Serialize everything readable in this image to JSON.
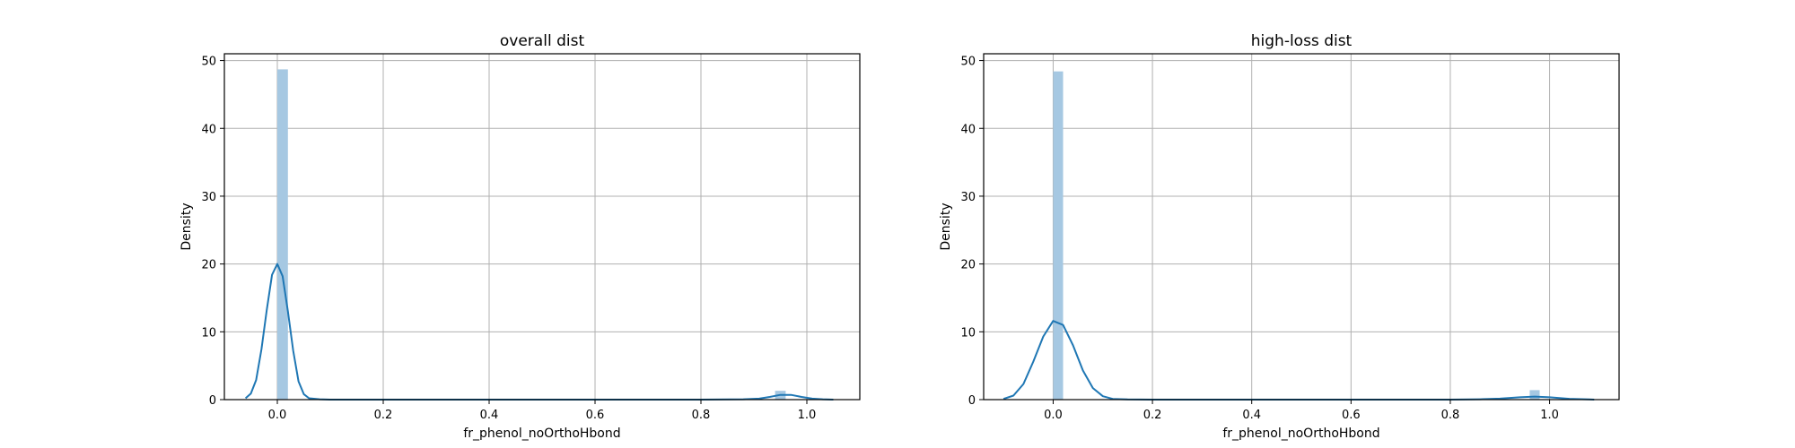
{
  "chart_data": [
    {
      "type": "histogram+kde",
      "title": "overall dist",
      "xlabel": "fr_phenol_noOrthoHbond",
      "ylabel": "Density",
      "xlim": [
        -0.1,
        1.1
      ],
      "ylim": [
        0,
        51
      ],
      "xticks": [
        0.0,
        0.2,
        0.4,
        0.6,
        0.8,
        1.0
      ],
      "xtick_labels": [
        "0.0",
        "0.2",
        "0.4",
        "0.6",
        "0.8",
        "1.0"
      ],
      "yticks": [
        0,
        10,
        20,
        30,
        40,
        50
      ],
      "ytick_labels": [
        "0",
        "10",
        "20",
        "30",
        "40",
        "50"
      ],
      "grid": true,
      "bins": [
        {
          "x0": 0.0,
          "x1": 0.02,
          "density": 48.7
        },
        {
          "x0": 0.94,
          "x1": 0.96,
          "density": 1.3
        }
      ],
      "kde": {
        "x": [
          -0.06,
          -0.05,
          -0.04,
          -0.03,
          -0.02,
          -0.01,
          0.0,
          0.01,
          0.02,
          0.03,
          0.04,
          0.05,
          0.06,
          0.08,
          0.1,
          0.2,
          0.4,
          0.6,
          0.8,
          0.88,
          0.91,
          0.93,
          0.95,
          0.97,
          0.99,
          1.01,
          1.03,
          1.05
        ],
        "y": [
          0.2,
          0.9,
          2.9,
          7.4,
          13.2,
          18.4,
          20.0,
          18.2,
          13.0,
          7.2,
          2.7,
          0.8,
          0.2,
          0.05,
          0.0,
          0.0,
          0.0,
          0.0,
          0.0,
          0.05,
          0.15,
          0.4,
          0.7,
          0.7,
          0.4,
          0.15,
          0.05,
          0.0
        ]
      }
    },
    {
      "type": "histogram+kde",
      "title": "high-loss dist",
      "xlabel": "fr_phenol_noOrthoHbond",
      "ylabel": "Density",
      "xlim": [
        -0.14,
        1.14
      ],
      "ylim": [
        0,
        51
      ],
      "xticks": [
        0.0,
        0.2,
        0.4,
        0.6,
        0.8,
        1.0
      ],
      "xtick_labels": [
        "0.0",
        "0.2",
        "0.4",
        "0.6",
        "0.8",
        "1.0"
      ],
      "yticks": [
        0,
        10,
        20,
        30,
        40,
        50
      ],
      "ytick_labels": [
        "0",
        "10",
        "20",
        "30",
        "40",
        "50"
      ],
      "grid": true,
      "bins": [
        {
          "x0": 0.0,
          "x1": 0.02,
          "density": 48.4
        },
        {
          "x0": 0.96,
          "x1": 0.98,
          "density": 1.4
        }
      ],
      "kde": {
        "x": [
          -0.1,
          -0.08,
          -0.06,
          -0.04,
          -0.02,
          0.0,
          0.02,
          0.04,
          0.06,
          0.08,
          0.1,
          0.12,
          0.15,
          0.2,
          0.4,
          0.6,
          0.8,
          0.86,
          0.9,
          0.94,
          0.97,
          1.0,
          1.04,
          1.08,
          1.09
        ],
        "y": [
          0.1,
          0.6,
          2.3,
          5.6,
          9.3,
          11.6,
          11.0,
          8.0,
          4.3,
          1.7,
          0.5,
          0.1,
          0.02,
          0.0,
          0.0,
          0.0,
          0.0,
          0.05,
          0.15,
          0.35,
          0.45,
          0.35,
          0.12,
          0.03,
          0.0
        ]
      }
    }
  ]
}
